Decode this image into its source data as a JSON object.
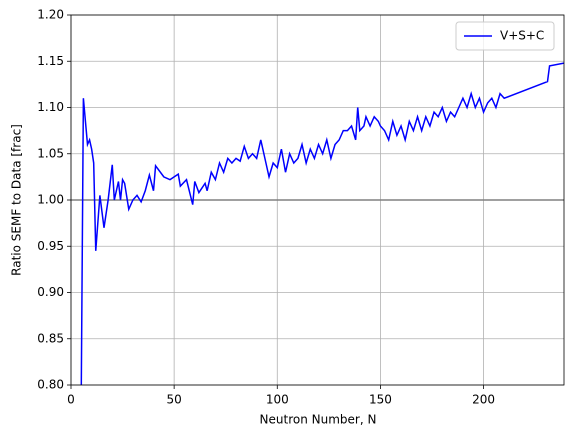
{
  "chart_data": {
    "type": "line",
    "xlabel": "Neutron Number, N",
    "ylabel": "Ratio SEMF to Data [frac]",
    "xlim": [
      0,
      239
    ],
    "ylim": [
      0.8,
      1.2
    ],
    "xticks": [
      0,
      50,
      100,
      150,
      200
    ],
    "yticks": [
      {
        "value": 0.8,
        "label": "0.80"
      },
      {
        "value": 0.85,
        "label": "0.85"
      },
      {
        "value": 0.9,
        "label": "0.90"
      },
      {
        "value": 0.95,
        "label": "0.95"
      },
      {
        "value": 1.0,
        "label": "1.00"
      },
      {
        "value": 1.05,
        "label": "1.05"
      },
      {
        "value": 1.1,
        "label": "1.10"
      },
      {
        "value": 1.15,
        "label": "1.15"
      },
      {
        "value": 1.2,
        "label": "1.20"
      }
    ],
    "grid": true,
    "legend": "upper right",
    "reference_line": {
      "value": 1.0,
      "color": "#808080"
    },
    "series": [
      {
        "name": "V+S+C",
        "color": "#0000ff",
        "x": [
          5,
          6,
          8,
          9,
          10,
          11,
          12,
          14,
          16,
          18,
          20,
          21,
          23,
          24,
          25,
          26,
          28,
          30,
          32,
          34,
          36,
          38,
          40,
          41,
          45,
          48,
          52,
          53,
          56,
          59,
          60,
          62,
          65,
          66,
          68,
          70,
          72,
          74,
          76,
          78,
          80,
          82,
          84,
          86,
          88,
          90,
          92,
          94,
          96,
          98,
          100,
          102,
          104,
          106,
          108,
          110,
          112,
          114,
          116,
          118,
          120,
          122,
          124,
          126,
          128,
          130,
          132,
          134,
          136,
          138,
          139,
          140,
          142,
          143,
          145,
          147,
          149,
          150,
          152,
          154,
          156,
          158,
          160,
          162,
          164,
          166,
          168,
          170,
          172,
          174,
          176,
          178,
          180,
          182,
          184,
          186,
          188,
          190,
          192,
          194,
          196,
          198,
          200,
          202,
          204,
          206,
          208,
          210,
          231,
          232,
          239
        ],
        "values": [
          0.8,
          1.11,
          1.06,
          1.065,
          1.055,
          1.04,
          0.945,
          1.005,
          0.97,
          1.0,
          1.038,
          1.0,
          1.02,
          1.0,
          1.022,
          1.018,
          0.99,
          1.0,
          1.005,
          0.998,
          1.01,
          1.027,
          1.01,
          1.037,
          1.025,
          1.022,
          1.028,
          1.015,
          1.022,
          0.995,
          1.02,
          1.008,
          1.018,
          1.01,
          1.03,
          1.022,
          1.04,
          1.03,
          1.045,
          1.04,
          1.045,
          1.042,
          1.058,
          1.045,
          1.05,
          1.045,
          1.065,
          1.045,
          1.025,
          1.04,
          1.035,
          1.055,
          1.03,
          1.05,
          1.04,
          1.045,
          1.06,
          1.04,
          1.055,
          1.045,
          1.06,
          1.05,
          1.065,
          1.045,
          1.06,
          1.065,
          1.075,
          1.075,
          1.08,
          1.065,
          1.1,
          1.075,
          1.08,
          1.09,
          1.08,
          1.09,
          1.085,
          1.08,
          1.075,
          1.065,
          1.085,
          1.07,
          1.08,
          1.065,
          1.085,
          1.075,
          1.09,
          1.075,
          1.09,
          1.08,
          1.095,
          1.09,
          1.1,
          1.085,
          1.095,
          1.09,
          1.1,
          1.11,
          1.1,
          1.115,
          1.1,
          1.11,
          1.095,
          1.105,
          1.11,
          1.1,
          1.115,
          1.11,
          1.128,
          1.145,
          1.148
        ]
      }
    ]
  }
}
